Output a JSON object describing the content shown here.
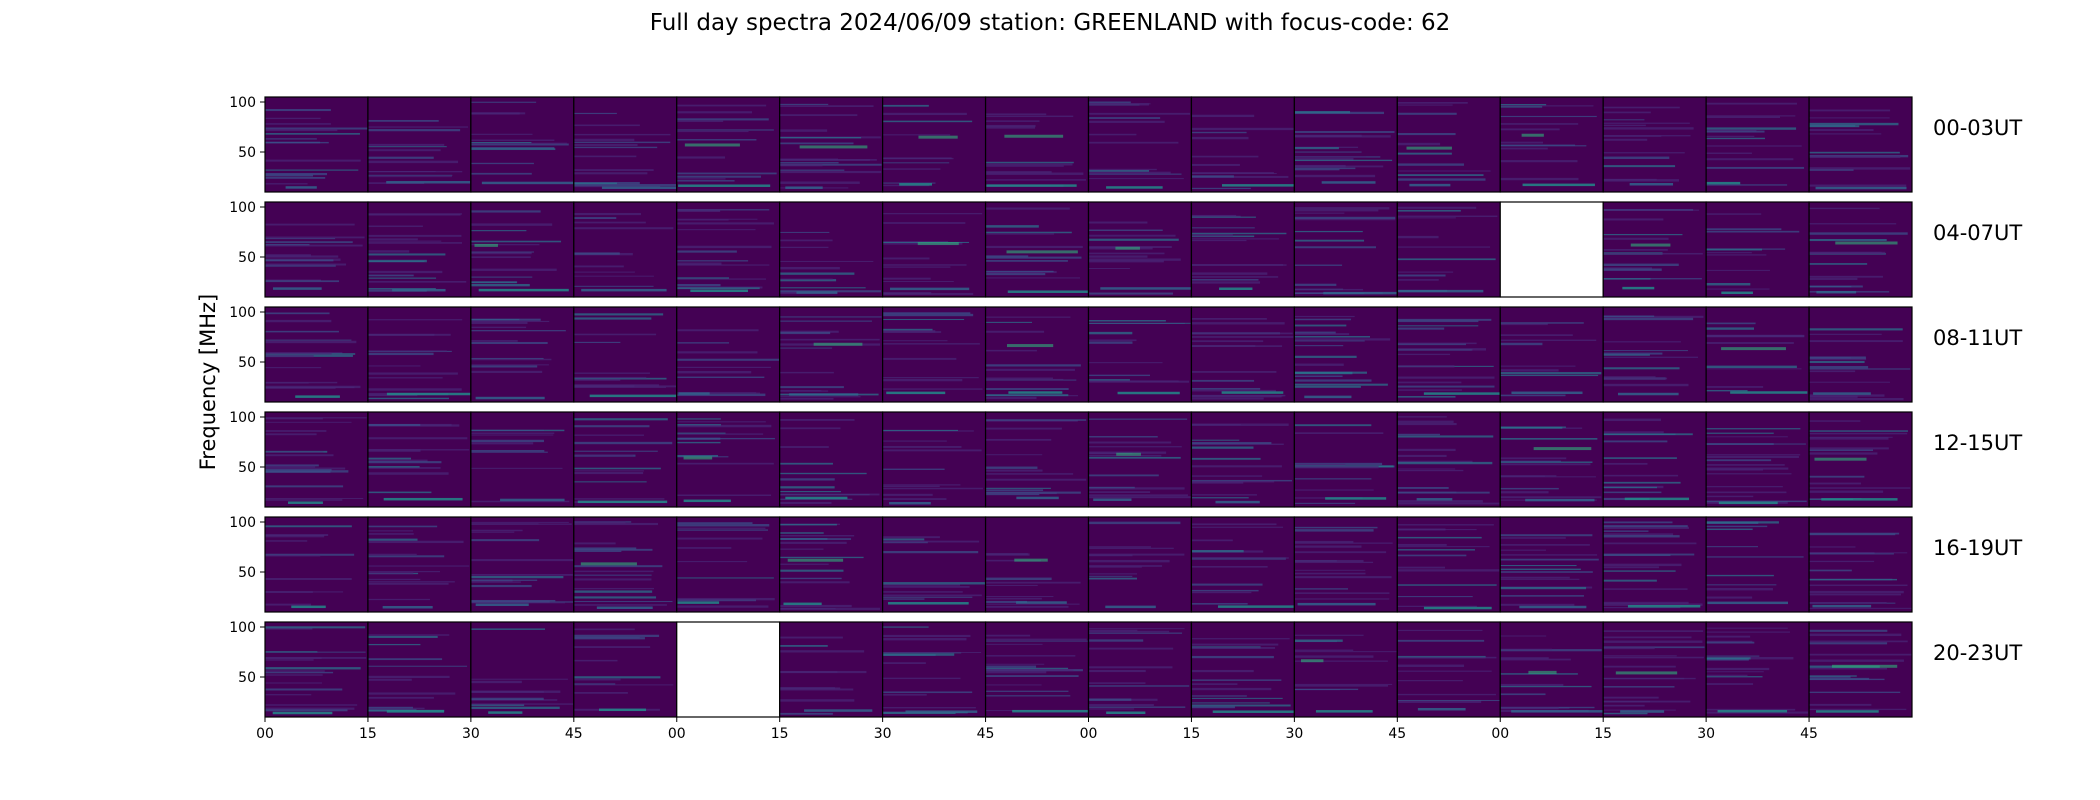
{
  "chart_data": {
    "type": "heatmap",
    "title": "Full day spectra 2024/06/09 station: GREENLAND with focus-code: 62",
    "ylabel": "Frequency [MHz]",
    "xlabel": "",
    "yticks": [
      50,
      100
    ],
    "ylim": [
      10,
      105
    ],
    "xtick_labels": [
      "00",
      "15",
      "30",
      "45",
      "00",
      "15",
      "30",
      "45",
      "00",
      "15",
      "30",
      "45",
      "00",
      "15",
      "30",
      "45"
    ],
    "colormap": "viridis",
    "colors": {
      "background": "#440154",
      "panel_border": "#000000",
      "no_data": "#ffffff"
    },
    "columns_per_row": 16,
    "rows": [
      {
        "label": "00-03UT",
        "missing_columns": []
      },
      {
        "label": "04-07UT",
        "missing_columns": [
          12
        ]
      },
      {
        "label": "08-11UT",
        "missing_columns": []
      },
      {
        "label": "12-15UT",
        "missing_columns": []
      },
      {
        "label": "16-19UT",
        "missing_columns": []
      },
      {
        "label": "20-23UT",
        "missing_columns": [
          4
        ]
      }
    ]
  }
}
